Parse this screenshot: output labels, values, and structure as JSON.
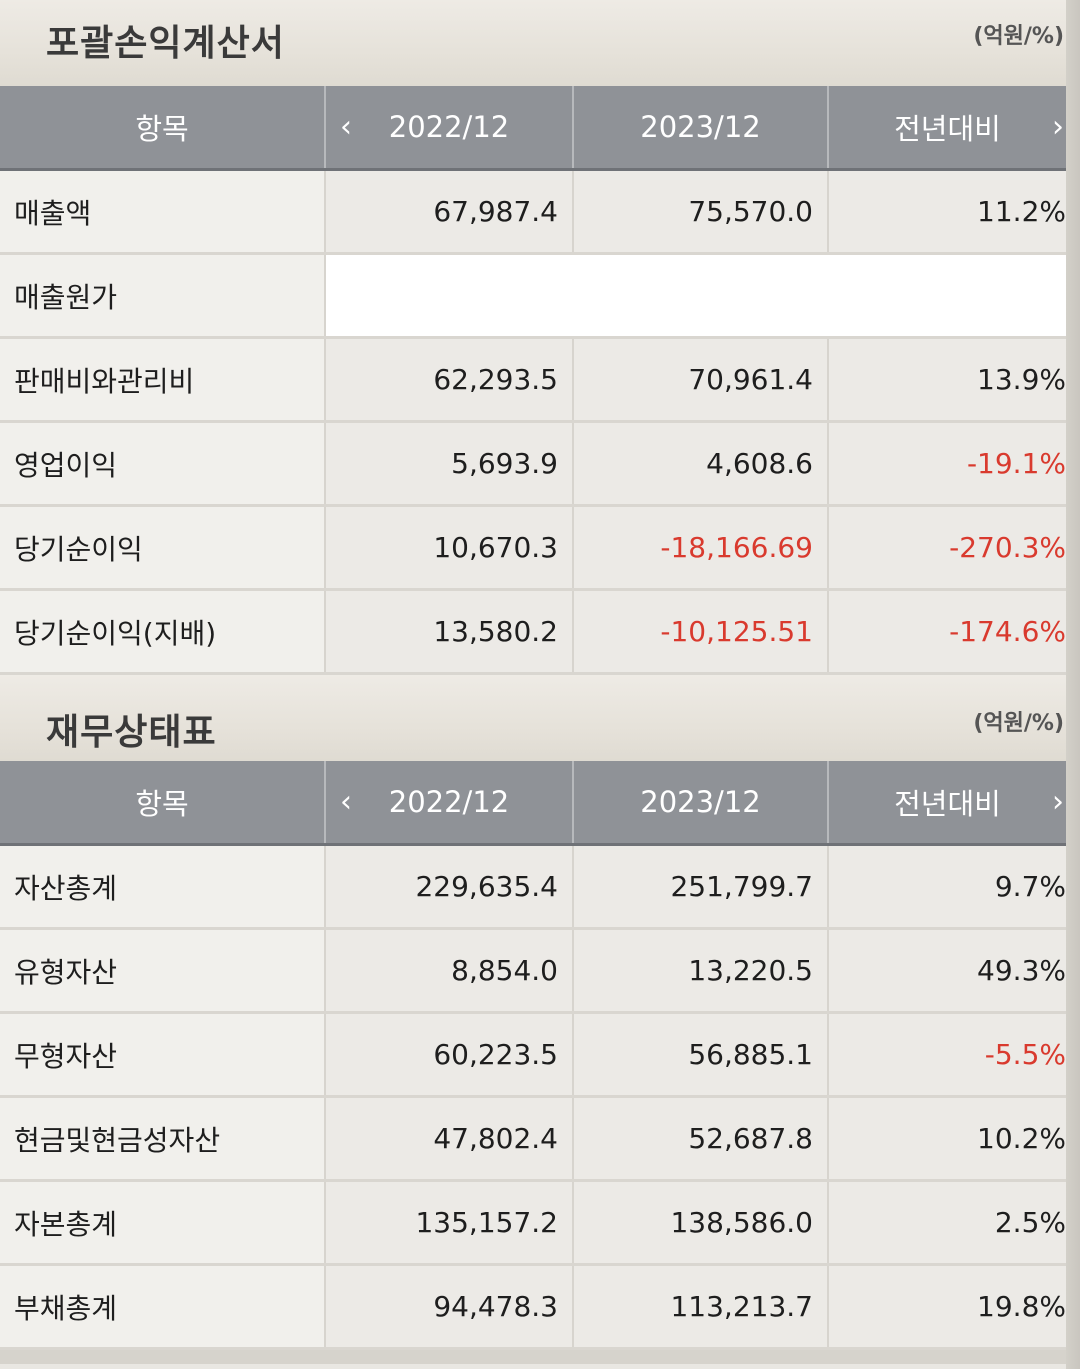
{
  "income_statement": {
    "title": "포괄손익계산서",
    "unit": "(억원/%)",
    "headers": {
      "item": "항목",
      "prev_arrow": "‹",
      "col1": "2022/12",
      "col2": "2023/12",
      "col3": "전년대비",
      "next_arrow": "›"
    },
    "rows": [
      {
        "label": "매출액",
        "v2022": "67,987.4",
        "v2023": "75,570.0",
        "yoy": "11.2%"
      },
      {
        "label": "매출원가",
        "v2022": "",
        "v2023": "",
        "yoy": ""
      },
      {
        "label": "판매비와관리비",
        "v2022": "62,293.5",
        "v2023": "70,961.4",
        "yoy": "13.9%"
      },
      {
        "label": "영업이익",
        "v2022": "5,693.9",
        "v2023": "4,608.6",
        "yoy": "-19.1%"
      },
      {
        "label": "당기순이익",
        "v2022": "10,670.3",
        "v2023": "-18,166.69",
        "yoy": "-270.3%"
      },
      {
        "label": "당기순이익(지배)",
        "v2022": "13,580.2",
        "v2023": "-10,125.51",
        "yoy": "-174.6%"
      }
    ]
  },
  "balance_sheet": {
    "title": "재무상태표",
    "unit": "(억원/%)",
    "headers": {
      "item": "항목",
      "prev_arrow": "‹",
      "col1": "2022/12",
      "col2": "2023/12",
      "col3": "전년대비",
      "next_arrow": "›"
    },
    "rows": [
      {
        "label": "자산총계",
        "v2022": "229,635.4",
        "v2023": "251,799.7",
        "yoy": "9.7%"
      },
      {
        "label": "유형자산",
        "v2022": "8,854.0",
        "v2023": "13,220.5",
        "yoy": "49.3%"
      },
      {
        "label": "무형자산",
        "v2022": "60,223.5",
        "v2023": "56,885.1",
        "yoy": "-5.5%"
      },
      {
        "label": "현금및현금성자산",
        "v2022": "47,802.4",
        "v2023": "52,687.8",
        "yoy": "10.2%"
      },
      {
        "label": "자본총계",
        "v2022": "135,157.2",
        "v2023": "138,586.0",
        "yoy": "2.5%"
      },
      {
        "label": "부채총계",
        "v2022": "94,478.3",
        "v2023": "113,213.7",
        "yoy": "19.8%"
      }
    ]
  },
  "colors": {
    "header_bg": "#8f9297",
    "negative": "#d93a2e",
    "row_bg": "#eceae6"
  }
}
